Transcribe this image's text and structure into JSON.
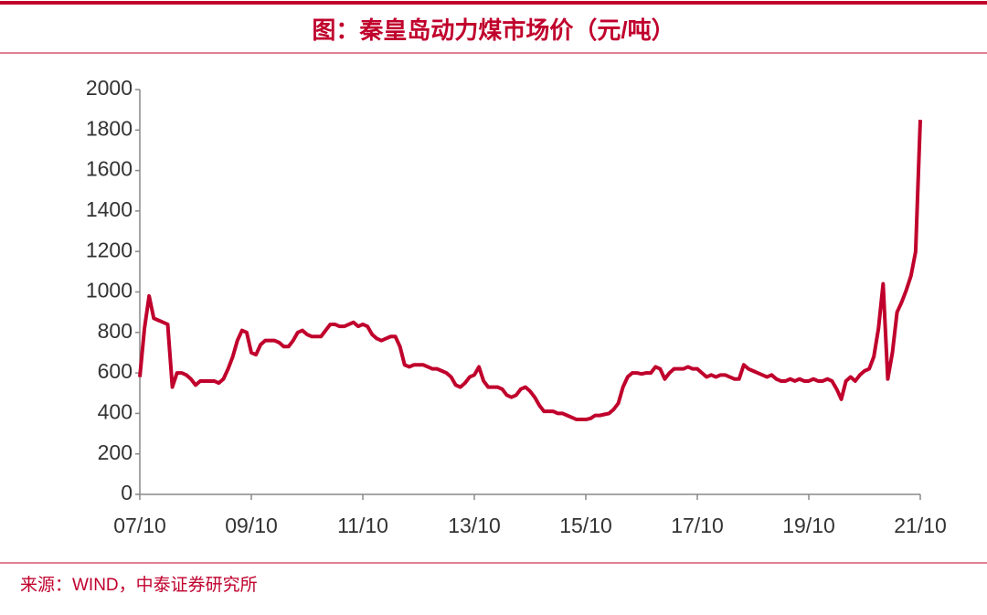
{
  "chart_data": {
    "type": "line",
    "title": "图：秦皇岛动力煤市场价（元/吨）",
    "source": "来源：WIND，中泰证券研究所",
    "x": [
      "07/10",
      "07/11",
      "07/12",
      "08/01",
      "08/02",
      "08/03",
      "08/04",
      "08/05",
      "08/06",
      "08/07",
      "08/08",
      "08/09",
      "08/10",
      "08/11",
      "08/12",
      "09/01",
      "09/02",
      "09/03",
      "09/04",
      "09/05",
      "09/06",
      "09/07",
      "09/08",
      "09/09",
      "09/10",
      "09/11",
      "09/12",
      "10/01",
      "10/02",
      "10/03",
      "10/04",
      "10/05",
      "10/06",
      "10/07",
      "10/08",
      "10/09",
      "10/10",
      "10/11",
      "10/12",
      "11/01",
      "11/02",
      "11/03",
      "11/04",
      "11/05",
      "11/06",
      "11/07",
      "11/08",
      "11/09",
      "11/10",
      "11/11",
      "11/12",
      "12/01",
      "12/02",
      "12/03",
      "12/04",
      "12/05",
      "12/06",
      "12/07",
      "12/08",
      "12/09",
      "12/10",
      "12/11",
      "12/12",
      "13/01",
      "13/02",
      "13/03",
      "13/04",
      "13/05",
      "13/06",
      "13/07",
      "13/08",
      "13/09",
      "13/10",
      "13/11",
      "13/12",
      "14/01",
      "14/02",
      "14/03",
      "14/04",
      "14/05",
      "14/06",
      "14/07",
      "14/08",
      "14/09",
      "14/10",
      "14/11",
      "14/12",
      "15/01",
      "15/02",
      "15/03",
      "15/04",
      "15/05",
      "15/06",
      "15/07",
      "15/08",
      "15/09",
      "15/10",
      "15/11",
      "15/12",
      "16/01",
      "16/02",
      "16/03",
      "16/04",
      "16/05",
      "16/06",
      "16/07",
      "16/08",
      "16/09",
      "16/10",
      "16/11",
      "16/12",
      "17/01",
      "17/02",
      "17/03",
      "17/04",
      "17/05",
      "17/06",
      "17/07",
      "17/08",
      "17/09",
      "17/10",
      "17/11",
      "17/12",
      "18/01",
      "18/02",
      "18/03",
      "18/04",
      "18/05",
      "18/06",
      "18/07",
      "18/08",
      "18/09",
      "18/10",
      "18/11",
      "18/12",
      "19/01",
      "19/02",
      "19/03",
      "19/04",
      "19/05",
      "19/06",
      "19/07",
      "19/08",
      "19/09",
      "19/10",
      "19/11",
      "19/12",
      "20/01",
      "20/02",
      "20/03",
      "20/04",
      "20/05",
      "20/06",
      "20/07",
      "20/08",
      "20/09",
      "20/10",
      "20/11",
      "20/12",
      "21/01",
      "21/02",
      "21/03",
      "21/04",
      "21/05",
      "21/06",
      "21/07",
      "21/08",
      "21/09",
      "21/10"
    ],
    "series": [
      {
        "color": "#c0002c",
        "values": [
          580,
          820,
          980,
          870,
          860,
          850,
          840,
          530,
          600,
          600,
          590,
          570,
          540,
          560,
          560,
          560,
          560,
          550,
          570,
          620,
          680,
          760,
          810,
          800,
          700,
          690,
          740,
          760,
          760,
          760,
          750,
          730,
          730,
          760,
          800,
          810,
          790,
          780,
          780,
          780,
          810,
          840,
          840,
          830,
          830,
          840,
          850,
          830,
          840,
          830,
          790,
          770,
          760,
          770,
          780,
          780,
          730,
          640,
          630,
          640,
          640,
          640,
          630,
          620,
          620,
          610,
          600,
          580,
          540,
          530,
          550,
          580,
          590,
          630,
          560,
          530,
          530,
          530,
          520,
          490,
          480,
          490,
          520,
          530,
          510,
          480,
          440,
          410,
          410,
          410,
          400,
          400,
          390,
          380,
          370,
          370,
          370,
          375,
          390,
          390,
          395,
          400,
          420,
          450,
          530,
          580,
          600,
          600,
          595,
          600,
          600,
          630,
          620,
          570,
          600,
          620,
          620,
          620,
          630,
          620,
          620,
          600,
          580,
          590,
          580,
          590,
          590,
          580,
          570,
          570,
          640,
          620,
          610,
          600,
          590,
          580,
          590,
          570,
          560,
          560,
          570,
          560,
          570,
          560,
          560,
          570,
          560,
          560,
          570,
          560,
          520,
          470,
          560,
          580,
          560,
          590,
          610,
          620,
          680,
          820,
          1040,
          570,
          700,
          900,
          950,
          1010,
          1080,
          1200,
          1850
        ]
      }
    ],
    "ylim": [
      0,
      2000
    ],
    "yticks": [
      0,
      200,
      400,
      600,
      800,
      1000,
      1200,
      1400,
      1600,
      1800,
      2000
    ],
    "xtick_every": 24
  }
}
